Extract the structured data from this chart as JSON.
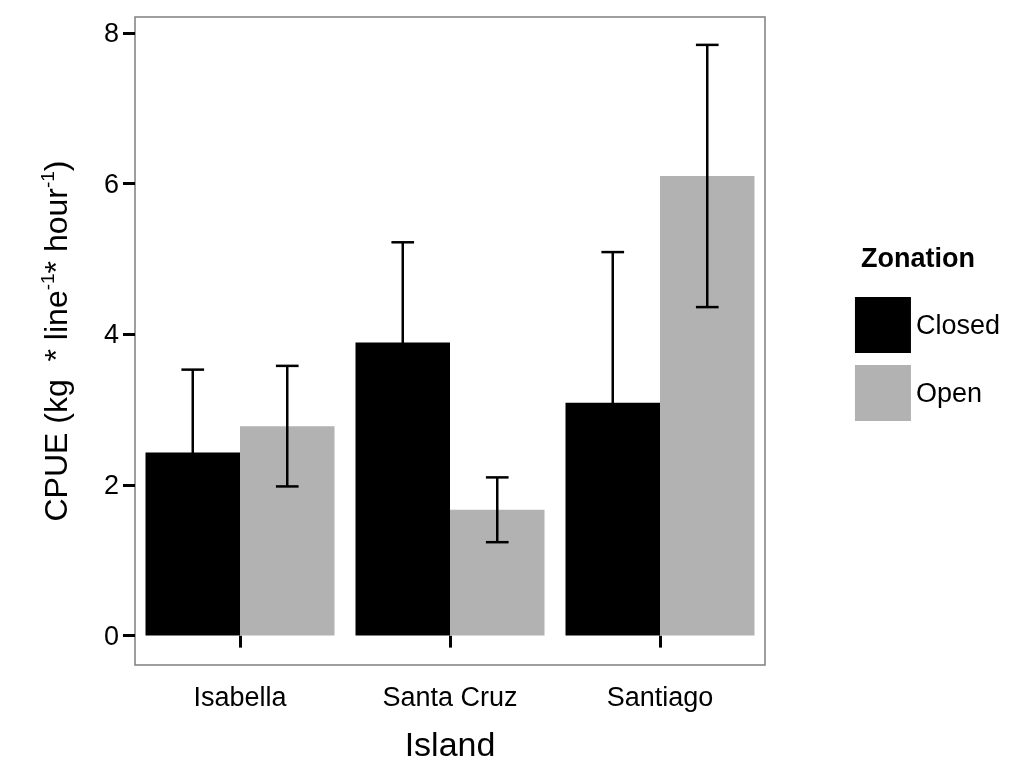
{
  "chart_data": {
    "type": "bar",
    "xlabel": "Island",
    "ylabel": "CPUE (kg  * line$^{-1}$* hour$^{-1}$)",
    "legend_title": "Zonation",
    "categories": [
      "Isabella",
      "Santa Cruz",
      "Santiago"
    ],
    "series": [
      {
        "name": "Closed",
        "color": "#000000",
        "values": [
          2.43,
          3.89,
          3.09
        ],
        "errors": [
          1.1,
          1.33,
          2.0
        ]
      },
      {
        "name": "Open",
        "color": "#b2b2b2",
        "values": [
          2.78,
          1.67,
          6.1
        ],
        "errors": [
          0.8,
          0.43,
          1.74
        ]
      }
    ],
    "ylim": [
      -0.39,
      8.21
    ],
    "yticks": [
      0,
      2,
      4,
      6,
      8
    ],
    "grid": false,
    "legend": "right"
  }
}
